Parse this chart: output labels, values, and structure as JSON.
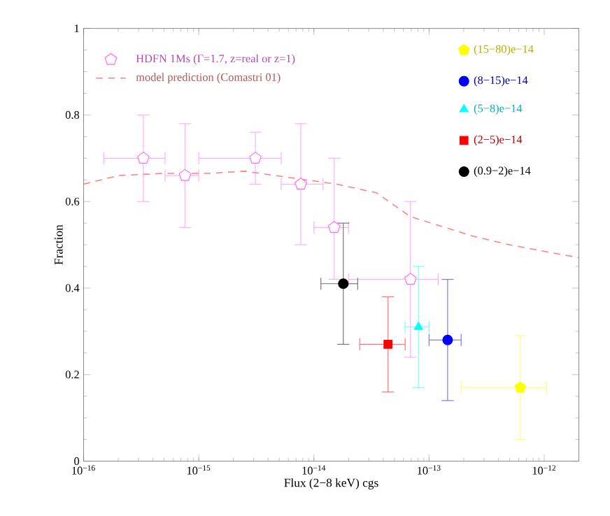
{
  "chart_data": {
    "type": "scatter",
    "xlabel": "Flux (2−8 keV) cgs",
    "ylabel": "Fraction",
    "log": "x",
    "legend": "top",
    "xlim": [
      1e-16,
      2e-12
    ],
    "ylim": [
      0,
      1
    ],
    "xticks": [
      {
        "value": 1e-16,
        "label": "10$^{−16}$"
      },
      {
        "value": 1e-15,
        "label": "10$^{−15}$"
      },
      {
        "value": 1e-14,
        "label": "10$^{−14}$"
      },
      {
        "value": 1e-13,
        "label": "10$^{−13}$"
      },
      {
        "value": 1e-12,
        "label": "10$^{−12}$"
      }
    ],
    "yticks": [
      0,
      0.2,
      0.4,
      0.6,
      0.8,
      1
    ],
    "series": [
      {
        "name": "HDFN 1Ms (Γ=1.7, z=real or z=1)",
        "color": "#ff66ff",
        "x": [
          3.3e-16,
          7.6e-16,
          3.1e-15,
          7.7e-15,
          1.5e-14,
          6.9e-14
        ],
        "values": [
          0.7,
          0.66,
          0.7,
          0.64,
          0.54,
          0.42
        ],
        "errors": [
          [
            0.6,
            0.8
          ],
          [
            0.54,
            0.78
          ],
          [
            0.64,
            0.76
          ],
          [
            0.5,
            0.78
          ],
          [
            0.42,
            0.7
          ],
          [
            0.24,
            0.6
          ]
        ],
        "xerrors": [
          [
            1.5e-16,
            5.1e-16
          ],
          [
            5.1e-16,
            1e-15
          ],
          [
            1e-15,
            5.2e-15
          ],
          [
            5.2e-15,
            1.2e-14
          ],
          [
            1e-14,
            2e-14
          ],
          [
            2e-14,
            1.2e-13
          ]
        ]
      },
      {
        "name": "model prediction (Comastri 01)",
        "type": "line",
        "color": "#ff8080",
        "line_style": "dashed",
        "marker": "none",
        "x": [
          1e-16,
          2e-16,
          5e-16,
          1.26e-15,
          2.5e-15,
          6.3e-15,
          1.58e-14,
          3.5e-14,
          6.9e-14,
          2.4e-13,
          5e-13,
          2e-12
        ],
        "values": [
          0.64,
          0.66,
          0.665,
          0.665,
          0.67,
          0.655,
          0.64,
          0.62,
          0.565,
          0.52,
          0.5,
          0.47
        ]
      },
      {
        "name": "(15−80)e−14",
        "color": "#ffff00",
        "x": [
          6.2e-13
        ],
        "values": [
          0.17
        ],
        "errors": [
          [
            0.05,
            0.29
          ]
        ],
        "xerrors": [
          [
            1.9e-13,
            1.05e-12
          ]
        ]
      },
      {
        "name": "(8−15)e−14",
        "color": "#0000ff",
        "marker": "circle",
        "x": [
          1.45e-13
        ],
        "values": [
          0.28
        ],
        "errors": [
          [
            0.14,
            0.42
          ]
        ],
        "xerrors": [
          [
            1e-13,
            1.9e-13
          ]
        ]
      },
      {
        "name": "(5−8)e−14",
        "color": "#00ffff",
        "marker": "triangle",
        "x": [
          8.1e-14
        ],
        "values": [
          0.31
        ],
        "errors": [
          [
            0.17,
            0.45
          ]
        ],
        "xerrors": [
          [
            6.2e-14,
            1e-13
          ]
        ]
      },
      {
        "name": "(2−5)e−14",
        "color": "#ff0000",
        "marker": "square",
        "x": [
          4.4e-14
        ],
        "values": [
          0.27
        ],
        "errors": [
          [
            0.16,
            0.38
          ]
        ],
        "xerrors": [
          [
            2.5e-14,
            6.2e-14
          ]
        ]
      },
      {
        "name": "(0.9−2)e−14",
        "color": "#000000",
        "marker": "circle",
        "x": [
          1.8e-14
        ],
        "values": [
          0.41
        ],
        "errors": [
          [
            0.27,
            0.55
          ]
        ],
        "xerrors": [
          [
            1.15e-14,
            2.4e-14
          ]
        ]
      }
    ]
  }
}
